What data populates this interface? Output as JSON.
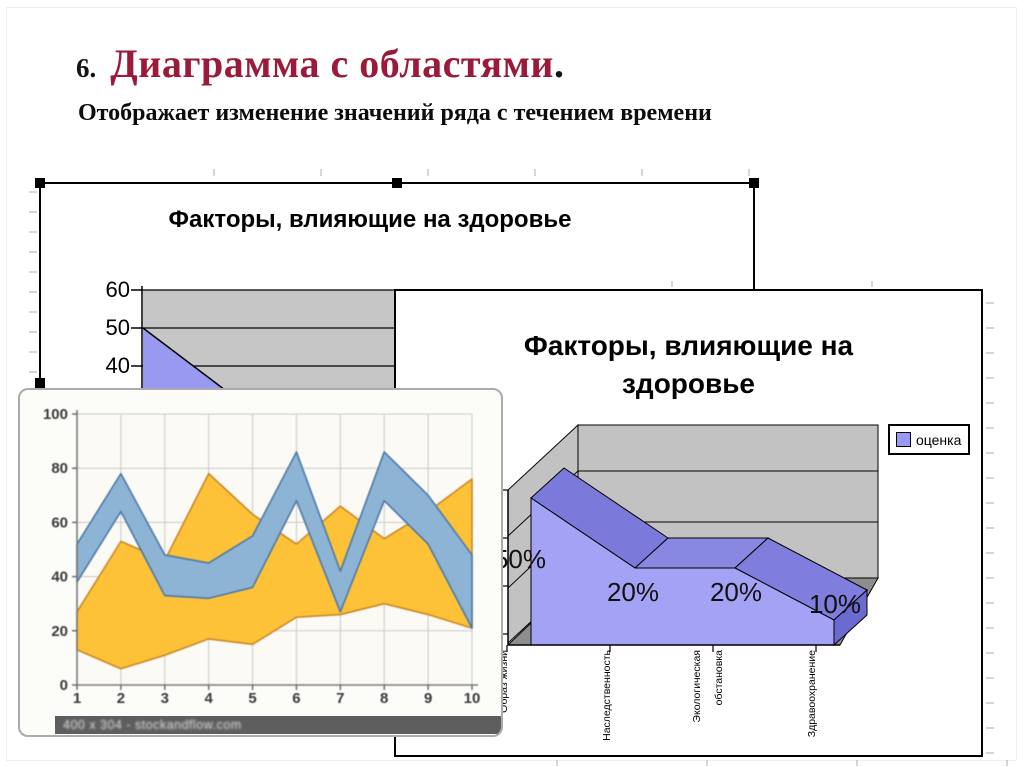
{
  "slide": {
    "number_prefix": "6.",
    "title": "Диаграмма с областями",
    "title_period": ".",
    "subtitle": "Отображает изменение значений ряда с течением времени",
    "title_color": "#9C1A39"
  },
  "chart1": {
    "title": "Факторы, влияющие на здоровье"
  },
  "chart3d": {
    "title_line1": "Факторы, влияющие на",
    "title_line2": "здоровье",
    "legend_label": "оценка",
    "data_labels": [
      "50%",
      "20%",
      "20%",
      "10%"
    ],
    "categories": [
      "Образ жизни",
      "Наследственность",
      "Экологическая обстановка",
      "Здравоохранение"
    ],
    "area_color": "#A3A2F5"
  },
  "picture": {
    "watermark": "400 х 304 - stockandflow.com"
  },
  "chart_data": [
    {
      "id": "chart1",
      "type": "area",
      "title": "Факторы, влияющие на здоровье",
      "y_tick_labels": [
        60,
        50,
        40
      ],
      "visible_note": "only top-left fragment visible; series descends from 50 at the axis",
      "points_visible_estimate": {
        "x": [
          0,
          2
        ],
        "values": [
          50,
          15
        ]
      },
      "area_color": "#9A99F2",
      "plot_bg": "#C6C6C6"
    },
    {
      "id": "chart3d",
      "type": "area3d",
      "title": "Факторы, влияющие на здоровье",
      "categories": [
        "Образ жизни",
        "Наследственность",
        "Экологическая обстановка",
        "Здравоохранение"
      ],
      "series": [
        {
          "name": "оценка",
          "values": [
            50,
            20,
            20,
            10
          ]
        }
      ],
      "data_labels": [
        "50%",
        "20%",
        "20%",
        "10%"
      ],
      "legend_position": "right",
      "area_color": "#A3A2F5",
      "wall_color": "#C2C2C2",
      "floor_color": "#8E8E8E"
    },
    {
      "id": "picture-band-chart",
      "type": "area",
      "x": [
        1,
        2,
        3,
        4,
        5,
        6,
        7,
        8,
        9,
        10
      ],
      "y_ticks": [
        0,
        20,
        40,
        60,
        80,
        100
      ],
      "ylim": [
        0,
        100
      ],
      "grid": true,
      "series": [
        {
          "name": "yellow-band-top",
          "color": "#FAC23F",
          "edge": "#C8872A",
          "values": [
            27,
            53,
            46,
            78,
            63,
            52,
            66,
            54,
            64,
            76
          ]
        },
        {
          "name": "yellow-band-bottom",
          "color": "#FAC23F",
          "edge": "#C8872A",
          "values": [
            13,
            6,
            11,
            17,
            15,
            25,
            26,
            30,
            26,
            21
          ]
        },
        {
          "name": "blue-band-top",
          "color": "#8FB3D3",
          "edge": "#4E7AA4",
          "values": [
            52,
            78,
            48,
            45,
            55,
            86,
            42,
            86,
            70,
            48
          ]
        },
        {
          "name": "blue-band-bottom",
          "color": "#8FB3D3",
          "edge": "#4E7AA4",
          "values": [
            38,
            64,
            33,
            32,
            36,
            68,
            27,
            68,
            52,
            21
          ]
        }
      ]
    }
  ]
}
